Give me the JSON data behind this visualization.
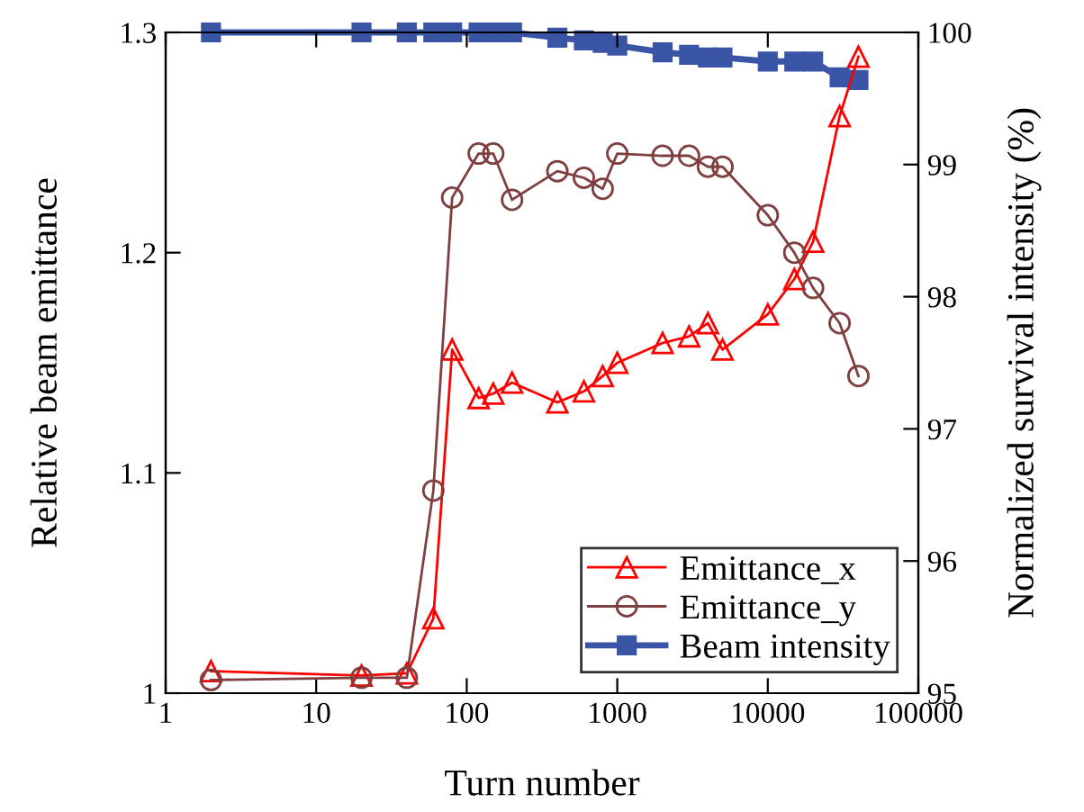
{
  "chart_data": {
    "type": "line",
    "xlabel": "Turn number",
    "ylabel": "Relative beam emittance",
    "y2label": "Normalized survival intensity (%)",
    "x": [
      2,
      20,
      40,
      60,
      80,
      120,
      150,
      200,
      400,
      600,
      800,
      1000,
      2000,
      3000,
      4000,
      5000,
      10000,
      15000,
      20000,
      30000,
      40000
    ],
    "log": "x",
    "xlim": [
      1,
      100000
    ],
    "xticks": [
      1,
      10,
      100,
      1000,
      10000,
      100000
    ],
    "ylim": [
      1,
      1.3
    ],
    "yticks": [
      1,
      1.1,
      1.2,
      1.3
    ],
    "y2lim": [
      95,
      100
    ],
    "y2ticks": [
      95,
      96,
      97,
      98,
      99,
      100
    ],
    "grid": false,
    "legend": "bottom right",
    "line_style": "solid",
    "series": [
      {
        "name": "Emittance_x",
        "color": "#ff0000",
        "marker": "triangle",
        "values": [
          1.01,
          1.008,
          1.009,
          1.034,
          1.156,
          1.134,
          1.136,
          1.141,
          1.132,
          1.137,
          1.144,
          1.15,
          1.159,
          1.162,
          1.168,
          1.156,
          1.172,
          1.188,
          1.205,
          1.262,
          1.289
        ]
      },
      {
        "name": "Emittance_y",
        "color": "#7f3f3f",
        "marker": "circle",
        "values": [
          1.006,
          1.007,
          1.007,
          1.092,
          1.225,
          1.245,
          1.245,
          1.224,
          1.237,
          1.234,
          1.229,
          1.245,
          1.244,
          1.244,
          1.239,
          1.239,
          1.217,
          1.2,
          1.184,
          1.168,
          1.144
        ]
      },
      {
        "name": "Beam intensity",
        "color": "#3a55a5",
        "marker": "square",
        "axis": "y2",
        "values": [
          100,
          100,
          100,
          100,
          100,
          100,
          100,
          100,
          99.96,
          99.94,
          99.92,
          99.9,
          99.85,
          99.83,
          99.81,
          99.81,
          99.78,
          99.78,
          99.78,
          99.66,
          99.64
        ]
      }
    ]
  }
}
